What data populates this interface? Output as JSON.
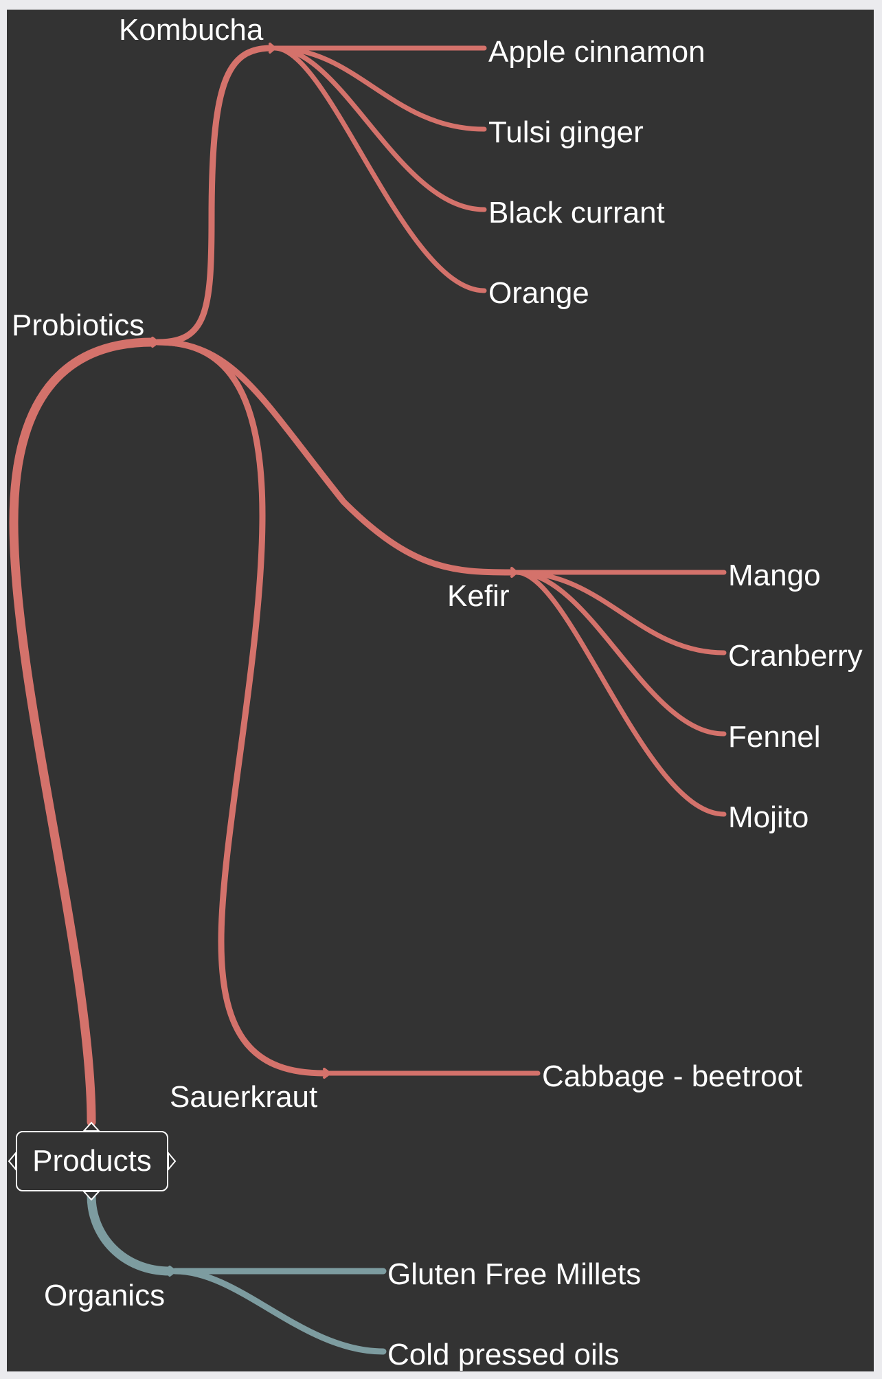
{
  "diagram": {
    "root": "Products",
    "colors": {
      "background": "#333333",
      "probiotics_branch": "#d4726b",
      "organics_branch": "#7d9ca0",
      "text": "#ffffff"
    },
    "nodes": {
      "probiotics": "Probiotics",
      "kombucha": "Kombucha",
      "apple_cinnamon": "Apple cinnamon",
      "tulsi_ginger": "Tulsi ginger",
      "black_currant": "Black currant",
      "orange": "Orange",
      "kefir": "Kefir",
      "mango": "Mango",
      "cranberry": "Cranberry",
      "fennel": "Fennel",
      "mojito": "Mojito",
      "sauerkraut": "Sauerkraut",
      "cabbage_beetroot": "Cabbage - beetroot",
      "organics": "Organics",
      "gluten_free_millets": "Gluten Free Millets",
      "cold_pressed_oils": "Cold pressed oils"
    }
  }
}
